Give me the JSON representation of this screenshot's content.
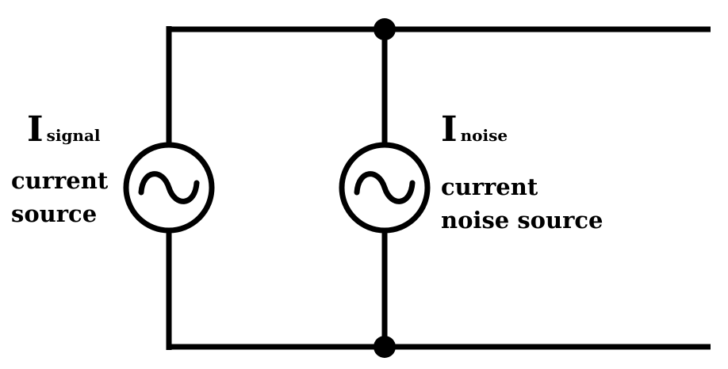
{
  "signal_source": {
    "symbol": "I",
    "subscript": "signal",
    "description_line1": "current",
    "description_line2": "source"
  },
  "noise_source": {
    "symbol": "I",
    "subscript": "noise",
    "description_line1": "current",
    "description_line2": "noise source"
  },
  "colors": {
    "ink": "#000000",
    "background": "#ffffff"
  }
}
